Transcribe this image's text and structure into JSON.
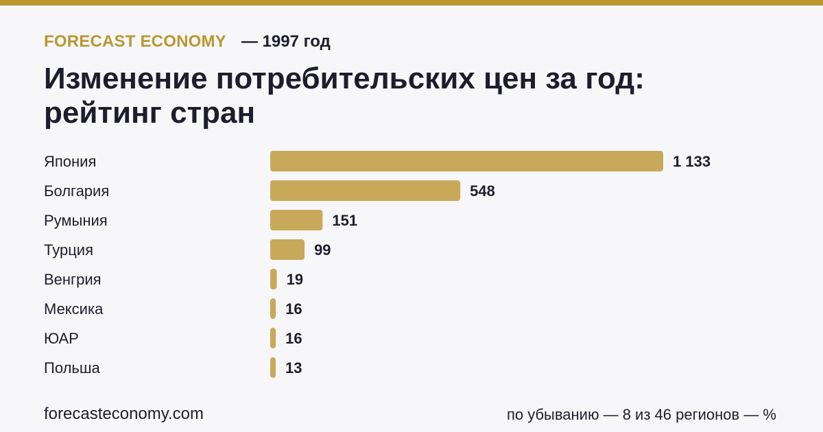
{
  "header": {
    "brand": "FORECAST ECONOMY",
    "year": "— 1997 год",
    "title": "Изменение потребительских цен за год:\nрейтинг стран"
  },
  "footer": {
    "site": "forecasteconomy.com",
    "note": "по убыванию — 8 из 46 регионов — %"
  },
  "colors": {
    "accent": "#b8972e",
    "bar": "#c8a95a",
    "text": "#1d1d2c",
    "background": "#f7f7fa"
  },
  "chart_data": {
    "type": "bar",
    "orientation": "horizontal",
    "categories": [
      "Япония",
      "Болгария",
      "Румыния",
      "Турция",
      "Венгрия",
      "Мексика",
      "ЮАР",
      "Польша"
    ],
    "values": [
      1133,
      548,
      151,
      99,
      19,
      16,
      16,
      13
    ],
    "value_labels": [
      "1 133",
      "548",
      "151",
      "99",
      "19",
      "16",
      "16",
      "13"
    ],
    "xlim": [
      0,
      1133
    ],
    "grid": false,
    "legend": "none"
  }
}
